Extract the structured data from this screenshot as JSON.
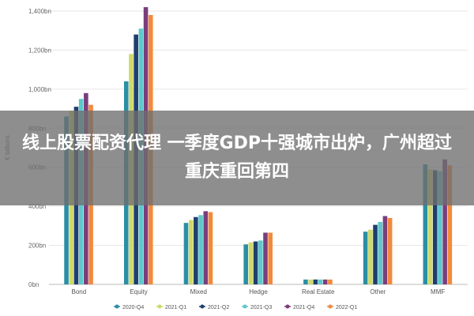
{
  "banner": {
    "title": "线上股票配资代理 一季度GDP十强城市出炉，广州超过重庆重回第四"
  },
  "chart_data": {
    "type": "bar",
    "ylabel": "€ billions",
    "ylim": [
      0,
      1400
    ],
    "yticks": [
      0,
      200,
      400,
      600,
      800,
      1000,
      1200,
      1400
    ],
    "ytick_labels": [
      "0bn",
      "200bn",
      "400bn",
      "600bn",
      "800bn",
      "1,000bn",
      "1,200bn",
      "1,400bn"
    ],
    "grid": true,
    "legend_position": "bottom",
    "categories": [
      "Bond",
      "Equity",
      "Mixed",
      "Hedge",
      "Real Estate",
      "Other",
      "MMF"
    ],
    "series": [
      {
        "name": "2020-Q4",
        "color": "#2a8fa6",
        "values": [
          860,
          1040,
          315,
          205,
          25,
          270,
          615
        ]
      },
      {
        "name": "2021-Q1",
        "color": "#cfd96a",
        "values": [
          890,
          1180,
          330,
          215,
          25,
          280,
          590
        ]
      },
      {
        "name": "2021-Q2",
        "color": "#1f3f6e",
        "values": [
          910,
          1280,
          345,
          220,
          25,
          305,
          585
        ]
      },
      {
        "name": "2021-Q3",
        "color": "#5ec8cc",
        "values": [
          950,
          1310,
          355,
          225,
          25,
          320,
          580
        ]
      },
      {
        "name": "2021-Q4",
        "color": "#7a3e7c",
        "values": [
          980,
          1420,
          375,
          265,
          25,
          350,
          640
        ]
      },
      {
        "name": "2022-Q1",
        "color": "#f28a3c",
        "values": [
          920,
          1380,
          370,
          265,
          25,
          340,
          610
        ]
      }
    ]
  }
}
